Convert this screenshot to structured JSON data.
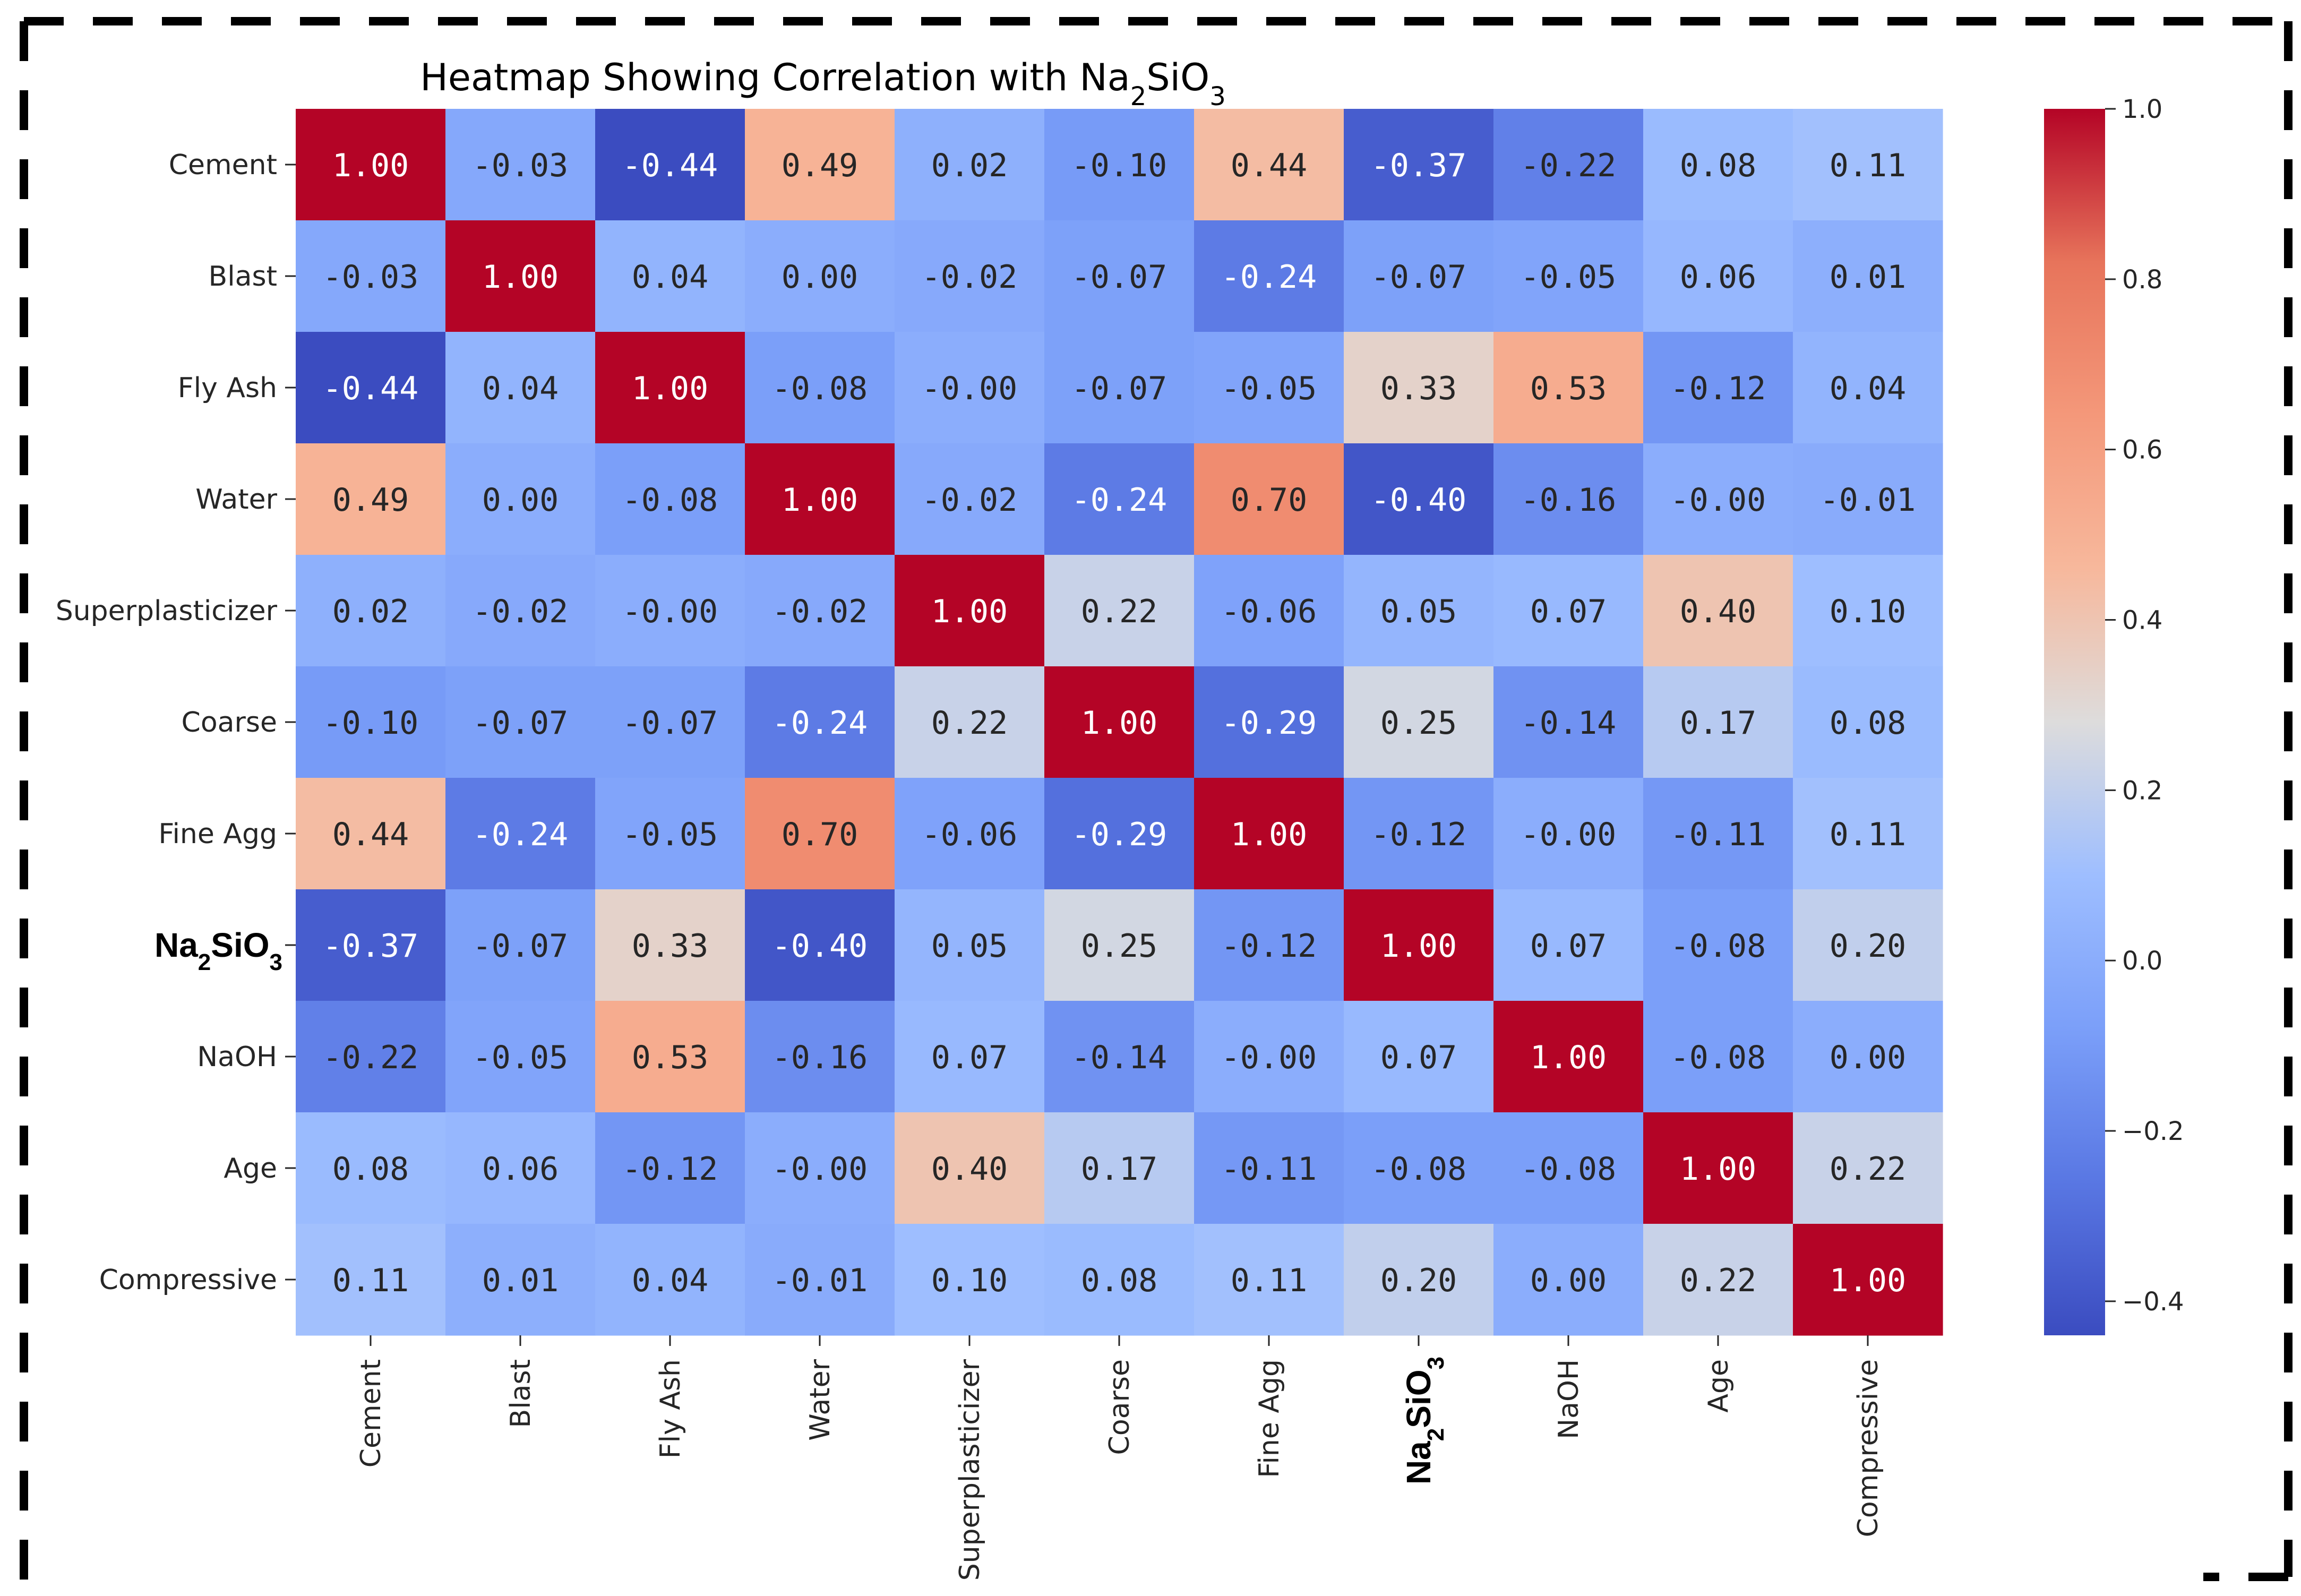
{
  "chart_data": {
    "type": "heatmap",
    "title_parts": [
      "Heatmap Showing Correlation with Na",
      "2",
      "SiO",
      "3"
    ],
    "row_labels": [
      "Cement",
      "Blast",
      "Fly Ash",
      "Water",
      "Superplasticizer",
      "Coarse",
      "Fine Agg",
      "Na2SiO3",
      "NaOH",
      "Age",
      "Compressive"
    ],
    "col_labels": [
      "Cement",
      "Blast",
      "Fly Ash",
      "Water",
      "Superplasticizer",
      "Coarse",
      "Fine Agg",
      "Na2SiO3",
      "NaOH",
      "Age",
      "Compressive"
    ],
    "highlight_label_parts": [
      "Na",
      "2",
      "SiO",
      "3"
    ],
    "matrix": [
      [
        1.0,
        -0.03,
        -0.44,
        0.49,
        0.02,
        -0.1,
        0.44,
        -0.37,
        -0.22,
        0.08,
        0.11
      ],
      [
        -0.03,
        1.0,
        0.04,
        0.0,
        -0.02,
        -0.07,
        -0.24,
        -0.07,
        -0.05,
        0.06,
        0.01
      ],
      [
        -0.44,
        0.04,
        1.0,
        -0.08,
        -0.0,
        -0.07,
        -0.05,
        0.33,
        0.53,
        -0.12,
        0.04
      ],
      [
        0.49,
        0.0,
        -0.08,
        1.0,
        -0.02,
        -0.24,
        0.7,
        -0.4,
        -0.16,
        -0.0,
        -0.01
      ],
      [
        0.02,
        -0.02,
        -0.0,
        -0.02,
        1.0,
        0.22,
        -0.06,
        0.05,
        0.07,
        0.4,
        0.1
      ],
      [
        -0.1,
        -0.07,
        -0.07,
        -0.24,
        0.22,
        1.0,
        -0.29,
        0.25,
        -0.14,
        0.17,
        0.08
      ],
      [
        0.44,
        -0.24,
        -0.05,
        0.7,
        -0.06,
        -0.29,
        1.0,
        -0.12,
        -0.0,
        -0.11,
        0.11
      ],
      [
        -0.37,
        -0.07,
        0.33,
        -0.4,
        0.05,
        0.25,
        -0.12,
        1.0,
        0.07,
        -0.08,
        0.2
      ],
      [
        -0.22,
        -0.05,
        0.53,
        -0.16,
        0.07,
        -0.14,
        -0.0,
        0.07,
        1.0,
        -0.08,
        0.0
      ],
      [
        0.08,
        0.06,
        -0.12,
        -0.0,
        0.4,
        0.17,
        -0.11,
        -0.08,
        -0.08,
        1.0,
        0.22
      ],
      [
        0.11,
        0.01,
        0.04,
        -0.01,
        0.1,
        0.08,
        0.11,
        0.2,
        0.0,
        0.22,
        1.0
      ]
    ],
    "cell_text": [
      [
        "1.00",
        "-0.03",
        "-0.44",
        "0.49",
        "0.02",
        "-0.10",
        "0.44",
        "-0.37",
        "-0.22",
        "0.08",
        "0.11"
      ],
      [
        "-0.03",
        "1.00",
        "0.04",
        "0.00",
        "-0.02",
        "-0.07",
        "-0.24",
        "-0.07",
        "-0.05",
        "0.06",
        "0.01"
      ],
      [
        "-0.44",
        "0.04",
        "1.00",
        "-0.08",
        "-0.00",
        "-0.07",
        "-0.05",
        "0.33",
        "0.53",
        "-0.12",
        "0.04"
      ],
      [
        "0.49",
        "0.00",
        "-0.08",
        "1.00",
        "-0.02",
        "-0.24",
        "0.70",
        "-0.40",
        "-0.16",
        "-0.00",
        "-0.01"
      ],
      [
        "0.02",
        "-0.02",
        "-0.00",
        "-0.02",
        "1.00",
        "0.22",
        "-0.06",
        "0.05",
        "0.07",
        "0.40",
        "0.10"
      ],
      [
        "-0.10",
        "-0.07",
        "-0.07",
        "-0.24",
        "0.22",
        "1.00",
        "-0.29",
        "0.25",
        "-0.14",
        "0.17",
        "0.08"
      ],
      [
        "0.44",
        "-0.24",
        "-0.05",
        "0.70",
        "-0.06",
        "-0.29",
        "1.00",
        "-0.12",
        "-0.00",
        "-0.11",
        "0.11"
      ],
      [
        "-0.37",
        "-0.07",
        "0.33",
        "-0.40",
        "0.05",
        "0.25",
        "-0.12",
        "1.00",
        "0.07",
        "-0.08",
        "0.20"
      ],
      [
        "-0.22",
        "-0.05",
        "0.53",
        "-0.16",
        "0.07",
        "-0.14",
        "-0.00",
        "0.07",
        "1.00",
        "-0.08",
        "0.00"
      ],
      [
        "0.08",
        "0.06",
        "-0.12",
        "-0.00",
        "0.40",
        "0.17",
        "-0.11",
        "-0.08",
        "-0.08",
        "1.00",
        "0.22"
      ],
      [
        "0.11",
        "0.01",
        "0.04",
        "-0.01",
        "0.10",
        "0.08",
        "0.11",
        "0.20",
        "0.00",
        "0.22",
        "1.00"
      ]
    ],
    "colormap": "coolwarm",
    "vmin": -0.44,
    "vmax": 1.0,
    "colorbar_ticks": [
      1.0,
      0.8,
      0.6,
      0.4,
      0.2,
      0.0,
      -0.2,
      -0.4
    ],
    "colorbar_tick_labels": [
      "1.0",
      "0.8",
      "0.6",
      "0.4",
      "0.2",
      "0.0",
      "−0.2",
      "−0.4"
    ],
    "colors": {
      "cmap_stops": [
        [
          0.0,
          "#3b4cc0"
        ],
        [
          0.125,
          "#5977e3"
        ],
        [
          0.25,
          "#7b9ff9"
        ],
        [
          0.375,
          "#9ebeff"
        ],
        [
          0.5,
          "#dddcdc"
        ],
        [
          0.625,
          "#f7b89c"
        ],
        [
          0.75,
          "#f4987a"
        ],
        [
          0.875,
          "#e7745b"
        ],
        [
          1.0,
          "#b40426"
        ]
      ],
      "axis": "#262626",
      "frame": "#000000"
    }
  }
}
